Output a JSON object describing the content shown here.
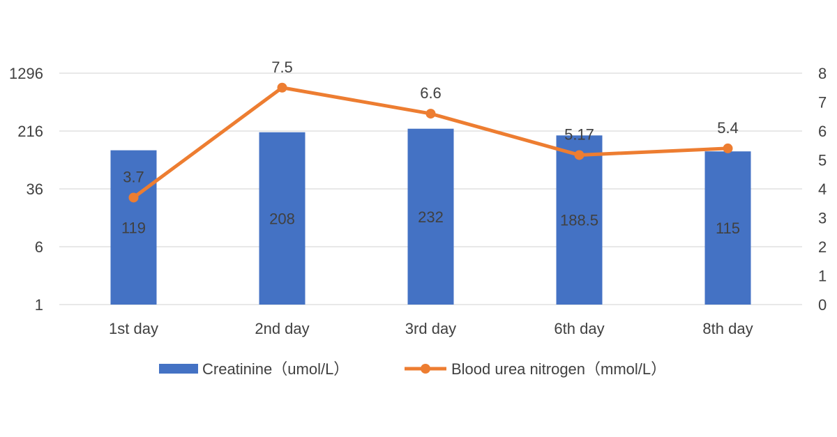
{
  "chart_data": {
    "type": "bar+line",
    "categories": [
      "1st day",
      "2nd day",
      "3rd  day",
      "6th day",
      "8th day"
    ],
    "series": [
      {
        "name": "Creatinine（umol/L）",
        "type": "bar",
        "axis": "left",
        "values": [
          119,
          208,
          232,
          188.5,
          115
        ],
        "labels": [
          "119",
          "208",
          "232",
          "188.5",
          "115"
        ],
        "color": "#4472C4"
      },
      {
        "name": "Blood urea nitrogen（mmol/L）",
        "type": "line",
        "axis": "right",
        "values": [
          3.7,
          7.5,
          6.6,
          5.17,
          5.4
        ],
        "labels": [
          "3.7",
          "7.5",
          "6.6",
          "5.17",
          "5.4"
        ],
        "color": "#ED7D31"
      }
    ],
    "left_axis": {
      "scale": "log6",
      "ticks": [
        "1296",
        "216",
        "36",
        "6",
        "1"
      ],
      "tick_values": [
        1296,
        216,
        36,
        6,
        1
      ],
      "ylim": [
        1,
        1296
      ]
    },
    "right_axis": {
      "scale": "linear",
      "ticks": [
        "8",
        "7",
        "6",
        "5",
        "4",
        "3",
        "2",
        "1",
        "0"
      ],
      "tick_values": [
        8,
        7,
        6,
        5,
        4,
        3,
        2,
        1,
        0
      ],
      "ylim": [
        0,
        8
      ]
    },
    "grid": true,
    "legend_position": "bottom"
  }
}
